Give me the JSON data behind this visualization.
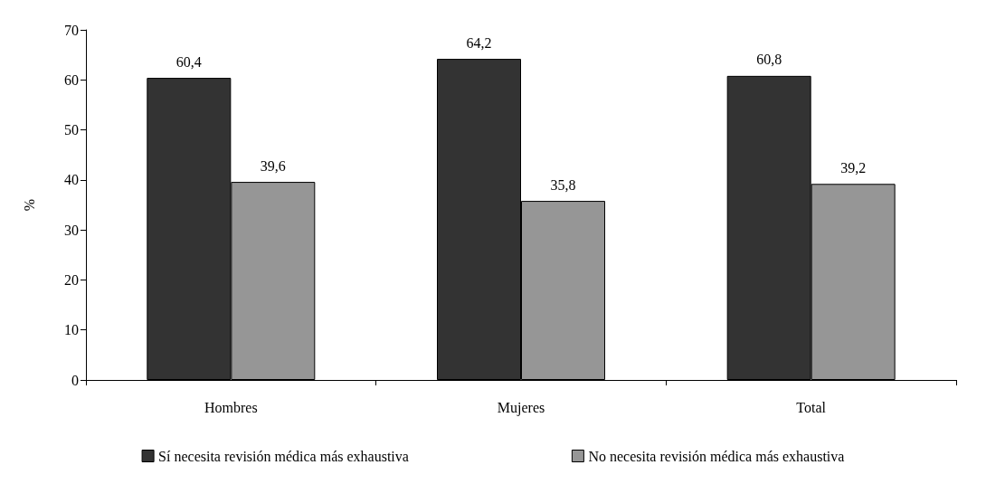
{
  "chart_data": {
    "type": "bar",
    "ylabel": "%",
    "categories": [
      "Hombres",
      "Mujeres",
      "Total"
    ],
    "series": [
      {
        "name": "Sí necesita revisión médica más exhaustiva",
        "color": "#333333",
        "values": [
          60.4,
          64.2,
          60.8
        ],
        "value_labels": [
          "60,4",
          "64,2",
          "60,8"
        ]
      },
      {
        "name": "No necesita revisión médica más exhaustiva",
        "color": "#969696",
        "values": [
          39.6,
          35.8,
          39.2
        ],
        "value_labels": [
          "39,6",
          "35,8",
          "39,2"
        ]
      }
    ],
    "ylim": [
      0,
      70
    ],
    "yticks": [
      0,
      10,
      20,
      30,
      40,
      50,
      60,
      70
    ],
    "grid": false,
    "legend": "bottom"
  }
}
